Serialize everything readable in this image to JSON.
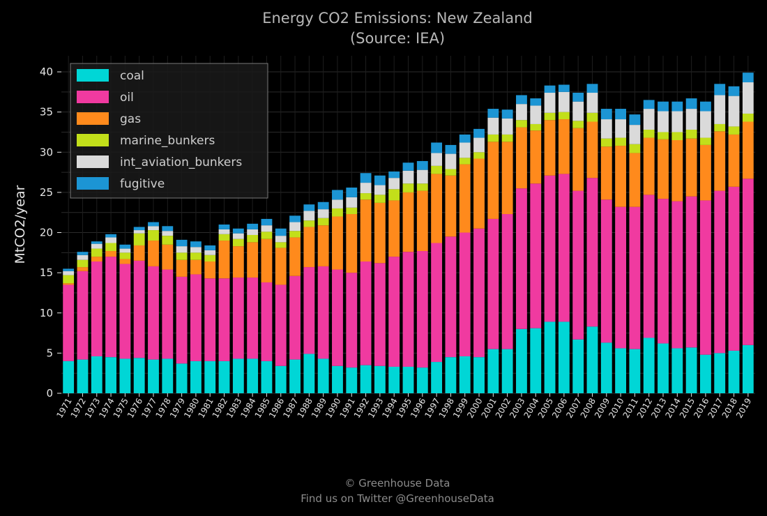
{
  "chart_data": {
    "type": "bar",
    "stacked": true,
    "title": "Energy CO2 Emissions: New Zealand",
    "subtitle": "(Source: IEA)",
    "ylabel": "MtCO2/year",
    "xlabel": "",
    "ylim": [
      0,
      42
    ],
    "yticks": [
      0,
      5,
      10,
      15,
      20,
      25,
      30,
      35,
      40
    ],
    "grid": true,
    "legend_position": "top-left",
    "categories": [
      "1971",
      "1972",
      "1973",
      "1974",
      "1975",
      "1976",
      "1977",
      "1978",
      "1979",
      "1980",
      "1981",
      "1982",
      "1983",
      "1984",
      "1985",
      "1986",
      "1987",
      "1988",
      "1989",
      "1990",
      "1991",
      "1992",
      "1993",
      "1994",
      "1995",
      "1996",
      "1997",
      "1998",
      "1999",
      "2000",
      "2001",
      "2002",
      "2003",
      "2004",
      "2005",
      "2006",
      "2007",
      "2008",
      "2009",
      "2010",
      "2011",
      "2012",
      "2013",
      "2014",
      "2015",
      "2016",
      "2017",
      "2018",
      "2019"
    ],
    "series": [
      {
        "name": "coal",
        "color": "#00d6d6",
        "values": [
          4.0,
          4.2,
          4.6,
          4.5,
          4.3,
          4.4,
          4.2,
          4.3,
          3.7,
          4.0,
          4.0,
          4.0,
          4.3,
          4.3,
          4.0,
          3.4,
          4.2,
          4.9,
          4.3,
          3.4,
          3.2,
          3.5,
          3.4,
          3.3,
          3.3,
          3.2,
          3.9,
          4.5,
          4.6,
          4.5,
          5.5,
          5.5,
          8.0,
          8.1,
          8.9,
          8.9,
          6.7,
          8.3,
          6.3,
          5.6,
          5.5,
          6.9,
          6.2,
          5.6,
          5.7,
          4.8,
          5.0,
          5.3,
          6.0
        ]
      },
      {
        "name": "oil",
        "color": "#f03aa0",
        "values": [
          9.5,
          11.0,
          11.8,
          12.5,
          11.8,
          12.1,
          11.6,
          11.1,
          10.8,
          10.8,
          10.3,
          10.3,
          10.1,
          10.1,
          9.8,
          10.1,
          10.4,
          10.8,
          11.5,
          12.0,
          11.8,
          12.9,
          12.8,
          13.7,
          14.3,
          14.5,
          14.8,
          15.0,
          15.4,
          16.0,
          16.2,
          16.8,
          17.5,
          18.0,
          18.2,
          18.4,
          18.5,
          18.5,
          17.8,
          17.6,
          17.7,
          17.8,
          18.0,
          18.3,
          18.8,
          19.2,
          20.2,
          20.4,
          20.7
        ]
      },
      {
        "name": "gas",
        "color": "#ff8a1c",
        "values": [
          0.2,
          0.5,
          0.6,
          0.7,
          0.6,
          1.9,
          3.2,
          3.1,
          2.1,
          1.8,
          2.1,
          4.7,
          3.9,
          4.4,
          5.4,
          4.6,
          4.8,
          5.0,
          5.1,
          6.6,
          7.3,
          7.7,
          7.5,
          7.0,
          7.4,
          7.5,
          8.6,
          7.6,
          8.5,
          8.7,
          9.6,
          9.0,
          7.6,
          6.6,
          6.9,
          6.8,
          7.8,
          7.0,
          6.6,
          7.6,
          6.7,
          7.1,
          7.4,
          7.6,
          7.2,
          6.9,
          7.4,
          6.5,
          7.1
        ]
      },
      {
        "name": "marine_bunkers",
        "color": "#c2df1a",
        "values": [
          1.0,
          0.9,
          1.0,
          1.0,
          0.8,
          1.5,
          1.3,
          1.1,
          0.9,
          0.9,
          0.8,
          0.8,
          0.9,
          0.9,
          0.9,
          0.7,
          0.8,
          0.8,
          0.9,
          1.0,
          0.8,
          0.8,
          1.0,
          1.4,
          1.1,
          0.9,
          1.0,
          0.8,
          0.8,
          0.8,
          0.9,
          0.9,
          0.9,
          0.8,
          0.9,
          0.9,
          0.9,
          1.1,
          1.0,
          1.0,
          1.1,
          1.0,
          0.9,
          1.0,
          1.1,
          0.9,
          0.9,
          1.0,
          1.0
        ]
      },
      {
        "name": "int_aviation_bunkers",
        "color": "#dadada",
        "values": [
          0.5,
          0.6,
          0.6,
          0.7,
          0.5,
          0.4,
          0.5,
          0.6,
          0.8,
          0.7,
          0.6,
          0.6,
          0.7,
          0.7,
          0.8,
          0.8,
          1.1,
          1.2,
          1.1,
          1.1,
          1.3,
          1.3,
          1.2,
          1.4,
          1.6,
          1.7,
          1.6,
          1.9,
          1.9,
          1.8,
          2.1,
          2.0,
          2.0,
          2.3,
          2.5,
          2.5,
          2.4,
          2.5,
          2.4,
          2.3,
          2.4,
          2.6,
          2.6,
          2.6,
          2.6,
          3.3,
          3.6,
          3.8,
          3.9
        ]
      },
      {
        "name": "fugitive",
        "color": "#1c95d4",
        "values": [
          0.3,
          0.4,
          0.3,
          0.4,
          0.5,
          0.4,
          0.5,
          0.6,
          0.8,
          0.7,
          0.6,
          0.6,
          0.6,
          0.7,
          0.8,
          0.9,
          0.8,
          0.8,
          0.9,
          1.2,
          1.2,
          1.2,
          1.2,
          0.8,
          1.0,
          1.1,
          1.3,
          1.1,
          1.0,
          1.1,
          1.1,
          1.1,
          1.1,
          0.9,
          0.9,
          0.9,
          1.1,
          1.1,
          1.3,
          1.3,
          1.3,
          1.1,
          1.2,
          1.2,
          1.3,
          1.2,
          1.4,
          1.2,
          1.2
        ]
      }
    ]
  },
  "footer": {
    "line1": "© Greenhouse Data",
    "line2": "Find us on Twitter @GreenhouseData"
  }
}
